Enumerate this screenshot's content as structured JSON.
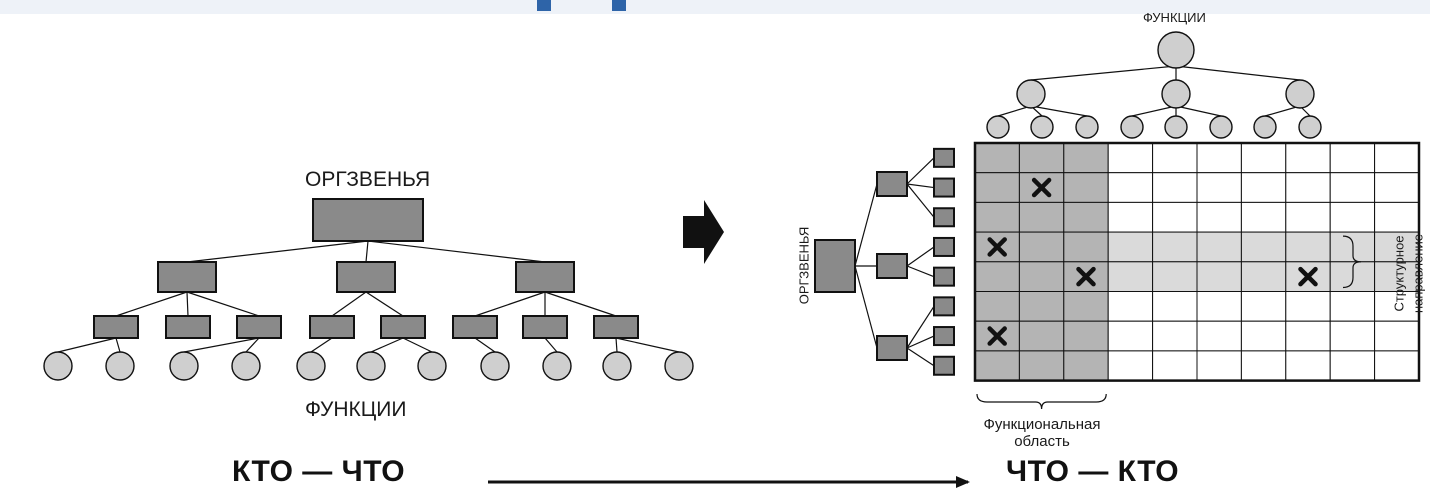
{
  "left": {
    "top_label": "ОРГЗВЕНЬЯ",
    "bottom_label": "ФУНКЦИИ"
  },
  "right": {
    "top_label": "ФУНКЦИИ",
    "side_label": "ОРГЗВЕНЬЯ",
    "brace_label_line1": "Структурное",
    "brace_label_line2": "направление",
    "bottom_label_line1": "Функциональная",
    "bottom_label_line2": "область",
    "matrix": {
      "rows": 8,
      "cols": 10,
      "x_marks": [
        [
          1,
          1
        ],
        [
          3,
          0
        ],
        [
          4,
          2
        ],
        [
          4,
          7
        ],
        [
          6,
          0
        ]
      ],
      "functional_area_cols": [
        0,
        1,
        2
      ],
      "structural_rows": [
        3,
        4
      ]
    }
  },
  "footer": {
    "left_text": "КТО — ЧТО",
    "right_text": "ЧТО — КТО"
  },
  "colors": {
    "box_fill": "#8a8a8a",
    "circle_fill": "#cfcfcf",
    "band_dark": "#b4b4b4",
    "band_light": "#dadada",
    "ink": "#111111"
  }
}
